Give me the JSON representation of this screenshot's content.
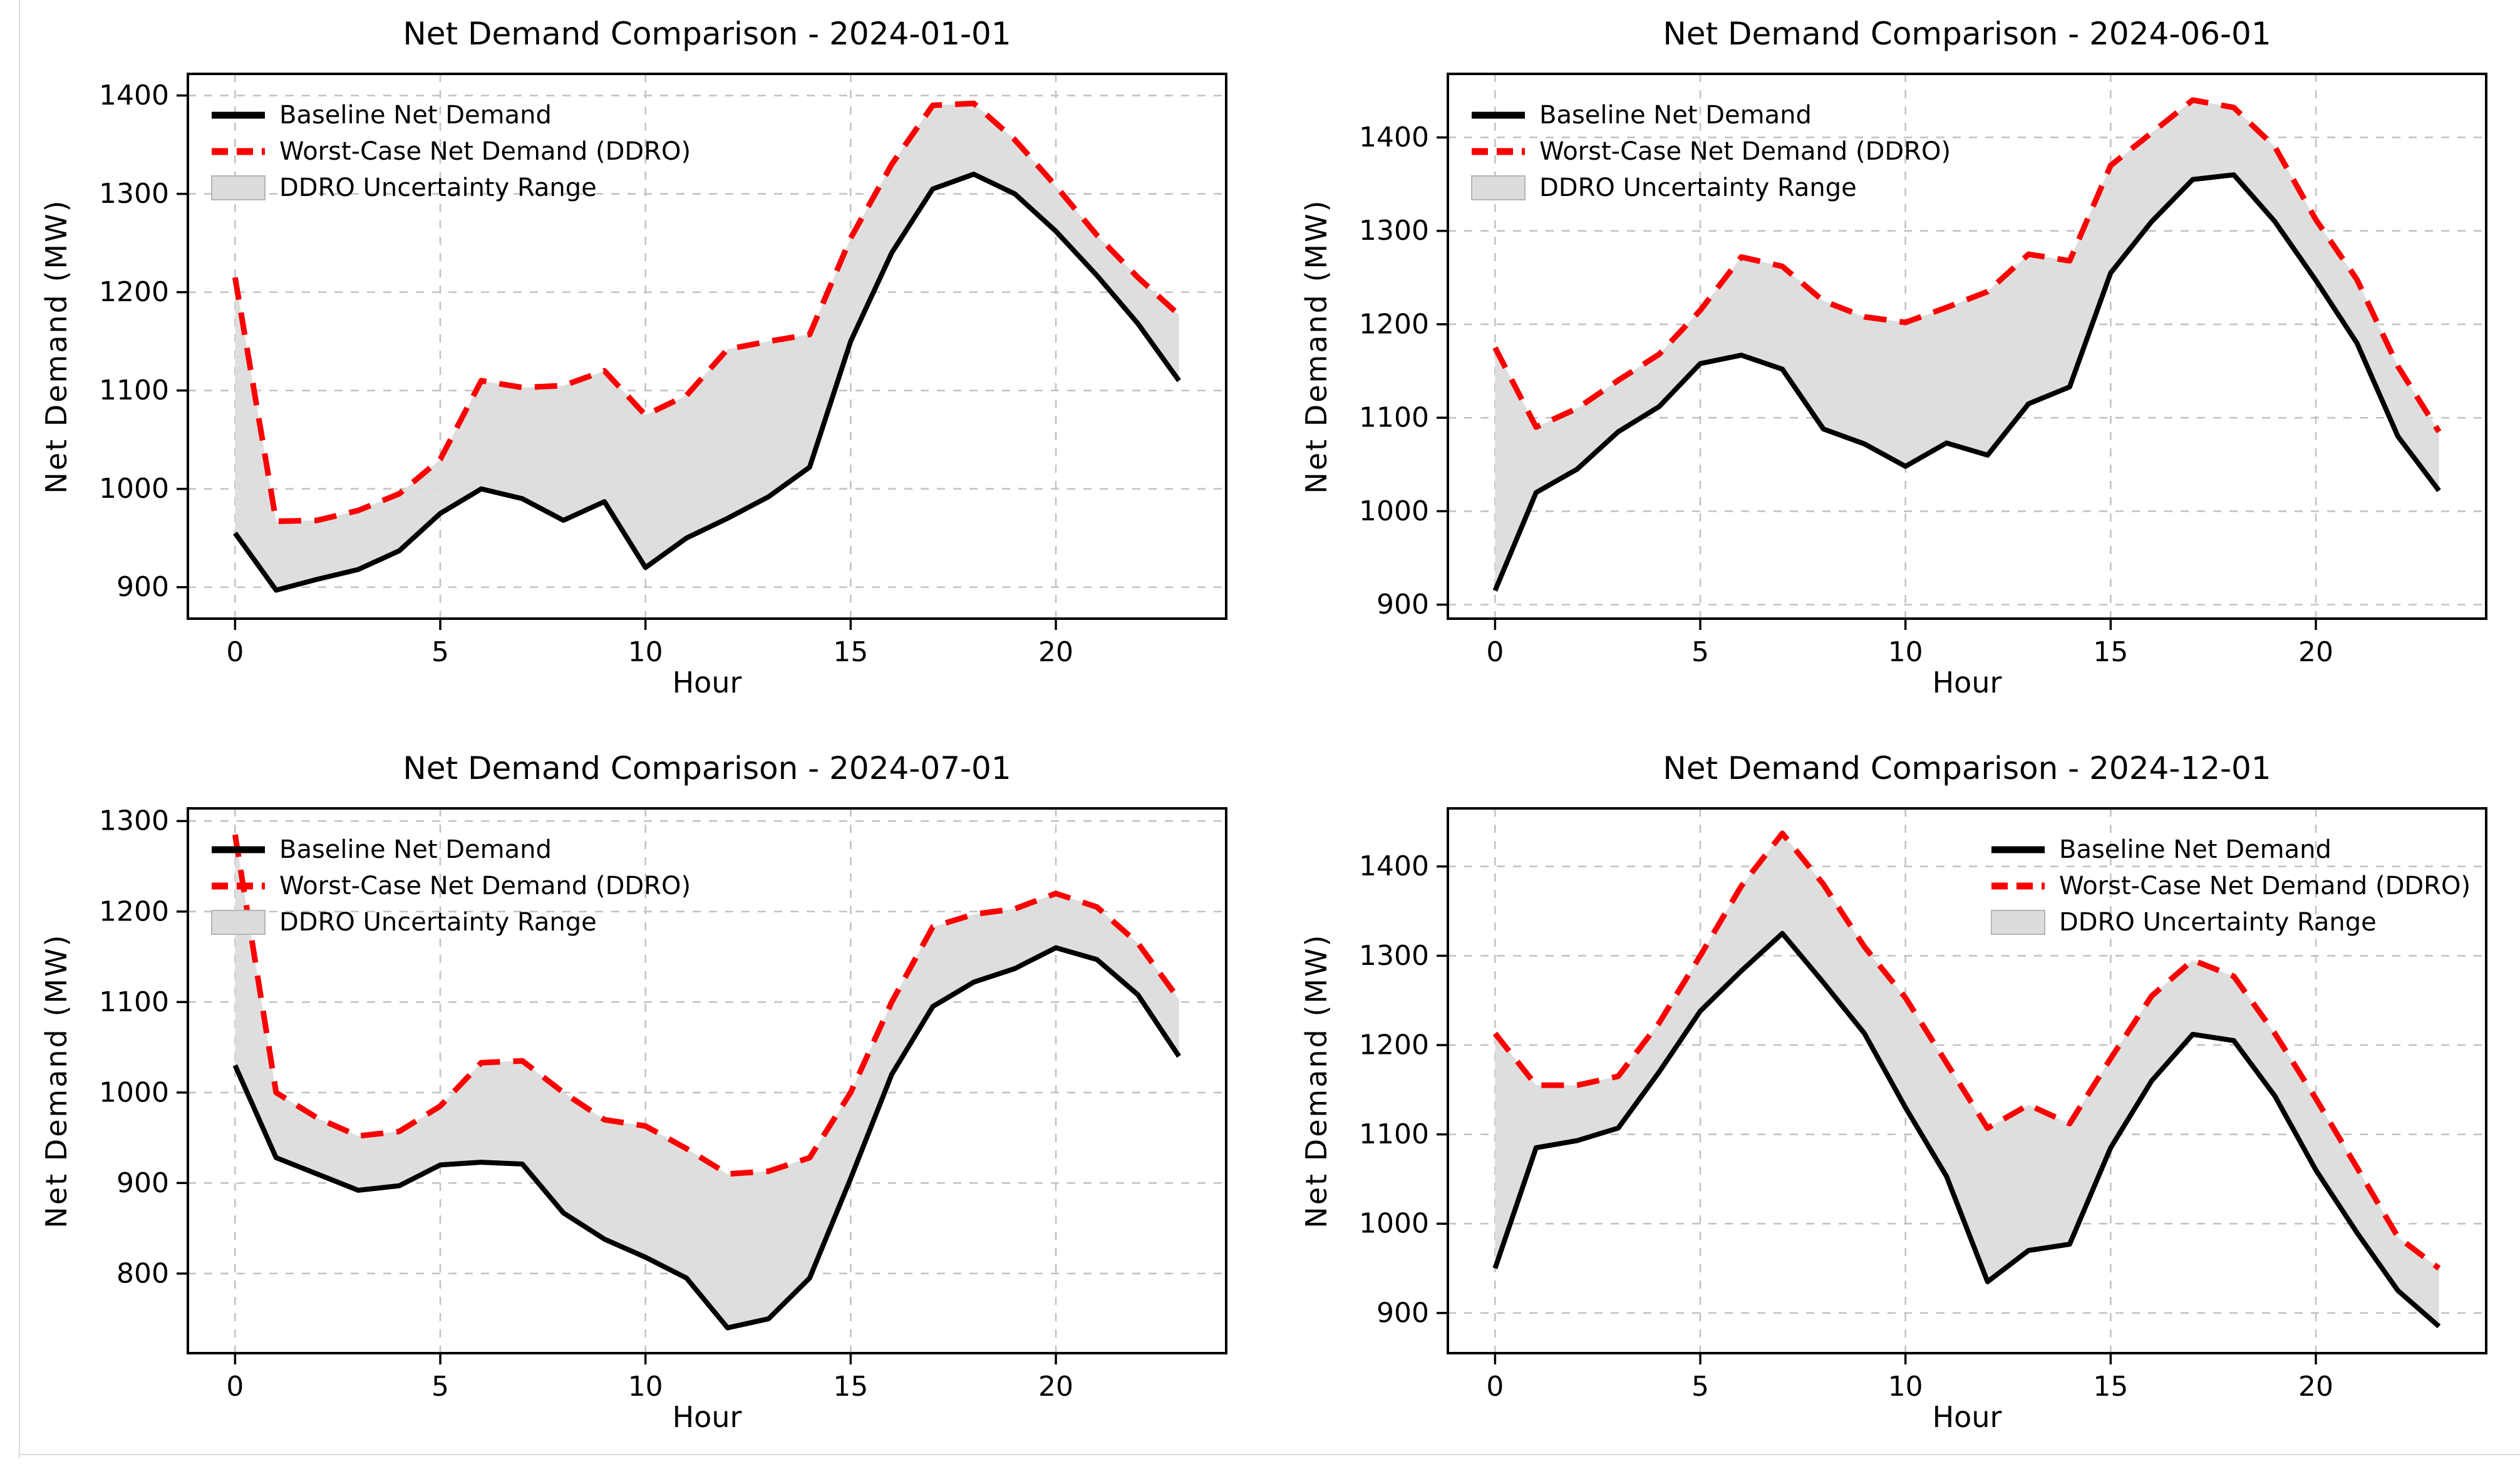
{
  "style": {
    "baseline_color": "#000000",
    "worst_case_color": "#fb0000",
    "fill_color": "#dcdcdc",
    "fill_edge_color": "#b5b5b5",
    "grid_color": "#c3c3c3",
    "spine_color": "#000000",
    "text_color": "#000000"
  },
  "legend_labels": {
    "baseline": "Baseline Net Demand",
    "worst_case": "Worst-Case Net Demand (DDRO)",
    "band": "DDRO Uncertainty Range"
  },
  "chart_data": [
    {
      "type": "line",
      "title": "Net Demand Comparison - 2024-01-01",
      "xlabel": "Hour",
      "ylabel": "Net Demand (MW)",
      "x": [
        0,
        1,
        2,
        3,
        4,
        5,
        6,
        7,
        8,
        9,
        10,
        11,
        12,
        13,
        14,
        15,
        16,
        17,
        18,
        19,
        20,
        21,
        22,
        23
      ],
      "series": [
        {
          "name": "Baseline Net Demand",
          "style": "solid",
          "color": "#000000",
          "values": [
            955,
            897,
            908,
            918,
            937,
            975,
            1000,
            990,
            968,
            987,
            920,
            950,
            970,
            992,
            1022,
            1150,
            1240,
            1305,
            1320,
            1300,
            1262,
            1217,
            1168,
            1110
          ]
        },
        {
          "name": "Worst-Case Net Demand (DDRO)",
          "style": "dashed",
          "color": "#fb0000",
          "values": [
            1215,
            967,
            968,
            978,
            995,
            1030,
            1110,
            1103,
            1105,
            1120,
            1075,
            1095,
            1142,
            1150,
            1157,
            1255,
            1330,
            1390,
            1392,
            1355,
            1308,
            1258,
            1215,
            1177
          ]
        }
      ],
      "band": {
        "label": "DDRO Uncertainty Range",
        "lower": "Baseline Net Demand",
        "upper": "Worst-Case Net Demand (DDRO)"
      },
      "xlim": [
        -1.15,
        24.15
      ],
      "ylim": [
        868,
        1422
      ],
      "xticks": [
        0,
        5,
        10,
        15,
        20
      ],
      "yticks": [
        900,
        1000,
        1100,
        1200,
        1300,
        1400
      ],
      "grid": true,
      "legend_position": "upper-left"
    },
    {
      "type": "line",
      "title": "Net Demand Comparison - 2024-06-01",
      "xlabel": "Hour",
      "ylabel": "Net Demand (MW)",
      "x": [
        0,
        1,
        2,
        3,
        4,
        5,
        6,
        7,
        8,
        9,
        10,
        11,
        12,
        13,
        14,
        15,
        16,
        17,
        18,
        19,
        20,
        21,
        22,
        23
      ],
      "series": [
        {
          "name": "Baseline Net Demand",
          "style": "solid",
          "color": "#000000",
          "values": [
            915,
            1020,
            1045,
            1085,
            1112,
            1158,
            1167,
            1152,
            1088,
            1072,
            1048,
            1073,
            1060,
            1115,
            1133,
            1255,
            1310,
            1355,
            1360,
            1310,
            1247,
            1180,
            1080,
            1022
          ]
        },
        {
          "name": "Worst-Case Net Demand (DDRO)",
          "style": "dashed",
          "color": "#fb0000",
          "values": [
            1175,
            1090,
            1110,
            1140,
            1168,
            1215,
            1272,
            1262,
            1225,
            1208,
            1202,
            1218,
            1235,
            1275,
            1268,
            1370,
            1405,
            1440,
            1432,
            1390,
            1312,
            1248,
            1155,
            1085
          ]
        }
      ],
      "band": {
        "label": "DDRO Uncertainty Range",
        "lower": "Baseline Net Demand",
        "upper": "Worst-Case Net Demand (DDRO)"
      },
      "xlim": [
        -1.15,
        24.15
      ],
      "ylim": [
        885,
        1468
      ],
      "xticks": [
        0,
        5,
        10,
        15,
        20
      ],
      "yticks": [
        900,
        1000,
        1100,
        1200,
        1300,
        1400
      ],
      "grid": true,
      "legend_position": "upper-left"
    },
    {
      "type": "line",
      "title": "Net Demand Comparison - 2024-07-01",
      "xlabel": "Hour",
      "ylabel": "Net Demand (MW)",
      "x": [
        0,
        1,
        2,
        3,
        4,
        5,
        6,
        7,
        8,
        9,
        10,
        11,
        12,
        13,
        14,
        15,
        16,
        17,
        18,
        19,
        20,
        21,
        22,
        23
      ],
      "series": [
        {
          "name": "Baseline Net Demand",
          "style": "solid",
          "color": "#000000",
          "values": [
            1030,
            928,
            910,
            892,
            897,
            920,
            923,
            921,
            867,
            838,
            818,
            795,
            740,
            750,
            795,
            905,
            1020,
            1095,
            1122,
            1137,
            1160,
            1147,
            1108,
            1040
          ]
        },
        {
          "name": "Worst-Case Net Demand (DDRO)",
          "style": "dashed",
          "color": "#fb0000",
          "values": [
            1285,
            1000,
            972,
            952,
            957,
            985,
            1033,
            1035,
            1000,
            970,
            963,
            938,
            910,
            913,
            928,
            1000,
            1100,
            1183,
            1197,
            1203,
            1220,
            1205,
            1165,
            1103
          ]
        }
      ],
      "band": {
        "label": "DDRO Uncertainty Range",
        "lower": "Baseline Net Demand",
        "upper": "Worst-Case Net Demand (DDRO)"
      },
      "xlim": [
        -1.15,
        24.15
      ],
      "ylim": [
        712,
        1314
      ],
      "xticks": [
        0,
        5,
        10,
        15,
        20
      ],
      "yticks": [
        800,
        900,
        1000,
        1100,
        1200,
        1300
      ],
      "grid": true,
      "legend_position": "upper-left"
    },
    {
      "type": "line",
      "title": "Net Demand Comparison - 2024-12-01",
      "xlabel": "Hour",
      "ylabel": "Net Demand (MW)",
      "x": [
        0,
        1,
        2,
        3,
        4,
        5,
        6,
        7,
        8,
        9,
        10,
        11,
        12,
        13,
        14,
        15,
        16,
        17,
        18,
        19,
        20,
        21,
        22,
        23
      ],
      "series": [
        {
          "name": "Baseline Net Demand",
          "style": "solid",
          "color": "#000000",
          "values": [
            950,
            1085,
            1093,
            1107,
            1170,
            1238,
            1283,
            1325,
            1270,
            1213,
            1130,
            1053,
            935,
            970,
            977,
            1085,
            1160,
            1212,
            1205,
            1143,
            1060,
            990,
            925,
            885
          ]
        },
        {
          "name": "Worst-Case Net Demand (DDRO)",
          "style": "dashed",
          "color": "#fb0000",
          "values": [
            1213,
            1155,
            1155,
            1165,
            1225,
            1300,
            1378,
            1437,
            1380,
            1310,
            1253,
            1180,
            1107,
            1133,
            1112,
            1185,
            1255,
            1295,
            1277,
            1213,
            1140,
            1063,
            985,
            950
          ]
        }
      ],
      "band": {
        "label": "DDRO Uncertainty Range",
        "lower": "Baseline Net Demand",
        "upper": "Worst-Case Net Demand (DDRO)"
      },
      "xlim": [
        -1.15,
        24.15
      ],
      "ylim": [
        855,
        1465
      ],
      "xticks": [
        0,
        5,
        10,
        15,
        20
      ],
      "yticks": [
        900,
        1000,
        1100,
        1200,
        1300,
        1400
      ],
      "grid": true,
      "legend_position": "upper-right"
    }
  ]
}
